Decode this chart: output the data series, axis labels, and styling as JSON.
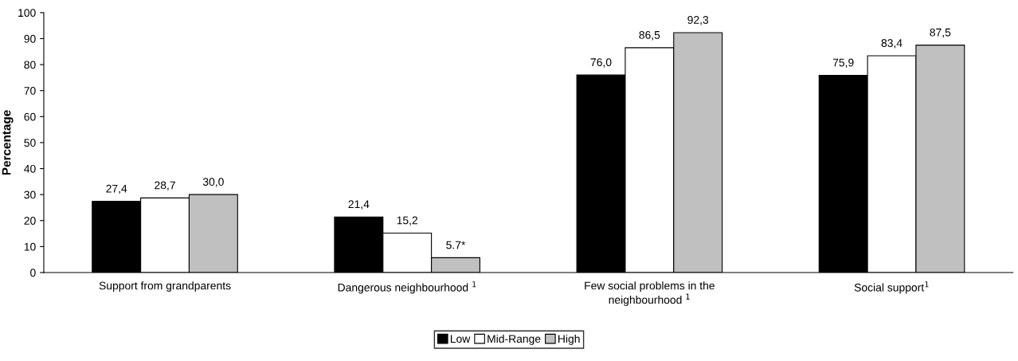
{
  "chart_data": {
    "type": "bar",
    "ylabel": "Percentage",
    "categories": [
      "Support from grandparents",
      "Dangerous neighbourhood $^{1}$",
      "Few social problems in the\nneighbourhood $^{1}$",
      "Social support$^{1}$"
    ],
    "series": [
      {
        "name": "Low",
        "color": "#000000",
        "values": [
          27.4,
          21.4,
          76.0,
          75.9
        ],
        "value_labels": [
          "27,4",
          "21,4",
          "76,0",
          "75,9"
        ]
      },
      {
        "name": "Mid-Range",
        "color": "#ffffff",
        "values": [
          28.7,
          15.2,
          86.5,
          83.4
        ],
        "value_labels": [
          "28,7",
          "15,2",
          "86,5",
          "83,4"
        ]
      },
      {
        "name": "High",
        "color": "#c0c0c0",
        "values": [
          30.0,
          5.7,
          92.3,
          87.5
        ],
        "value_labels": [
          "30,0",
          "5.7*",
          "92,3",
          "87,5"
        ]
      }
    ],
    "ylim": [
      0,
      100
    ],
    "yticks": [
      0,
      10,
      20,
      30,
      40,
      50,
      60,
      70,
      80,
      90,
      100
    ],
    "grid": false,
    "legend": "bottom"
  }
}
